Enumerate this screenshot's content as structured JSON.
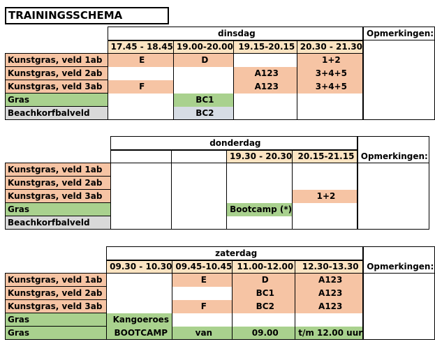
{
  "title": "TRAININGSSCHEMA",
  "sections": [
    {
      "day": "dinsdag",
      "times": [
        "17.45 - 18.45",
        "19.00-20.00",
        "19.15-20.15",
        "20.30 - 21.30"
      ],
      "remarks_header": "Opmerkingen:",
      "rows": [
        {
          "location": "Kunstgras, veld 1ab",
          "cells": [
            "E",
            "D",
            "",
            "1+2"
          ]
        },
        {
          "location": "Kunstgras, veld 2ab",
          "cells": [
            "",
            "",
            "A123",
            "3+4+5"
          ]
        },
        {
          "location": "Kunstgras, veld 3ab",
          "cells": [
            "F",
            "",
            "A123",
            "3+4+5"
          ]
        },
        {
          "location": "Gras",
          "cells": [
            "",
            "BC1",
            "",
            ""
          ]
        },
        {
          "location": "Beachkorfbalveld",
          "cells": [
            "",
            "BC2",
            "",
            ""
          ]
        }
      ]
    },
    {
      "day": "donderdag",
      "times": [
        "",
        "",
        "19.30 - 20.30",
        "20.15-21.15"
      ],
      "remarks_header": "Opmerkingen:",
      "rows": [
        {
          "location": "Kunstgras, veld 1ab",
          "cells": [
            "",
            "",
            "",
            ""
          ]
        },
        {
          "location": "Kunstgras, veld 2ab",
          "cells": [
            "",
            "",
            "",
            ""
          ]
        },
        {
          "location": "Kunstgras, veld 3ab",
          "cells": [
            "",
            "",
            "",
            "1+2"
          ]
        },
        {
          "location": "Gras",
          "cells": [
            "",
            "",
            "Bootcamp (*)",
            ""
          ]
        },
        {
          "location": "Beachkorfbalveld",
          "cells": [
            "",
            "",
            "",
            ""
          ]
        }
      ]
    },
    {
      "day": "zaterdag",
      "times": [
        "09.30 - 10.30",
        "09.45-10.45",
        "11.00-12.00",
        "12.30-13.30"
      ],
      "remarks_header": "Opmerkingen:",
      "rows": [
        {
          "location": "Kunstgras, veld 1ab",
          "cells": [
            "",
            "E",
            "D",
            "A123"
          ]
        },
        {
          "location": "Kunstgras, veld 2ab",
          "cells": [
            "",
            "",
            "BC1",
            "A123"
          ]
        },
        {
          "location": "Kunstgras, veld 3ab",
          "cells": [
            "",
            "F",
            "BC2",
            "A123"
          ]
        },
        {
          "location": "Gras",
          "cells": [
            "Kangoeroes",
            "",
            "",
            ""
          ]
        },
        {
          "location": "Gras",
          "cells": [
            "BOOTCAMP",
            "van",
            "09.00",
            "t/m 12.00 uur"
          ]
        }
      ]
    }
  ],
  "colors": {
    "salmon": "#f6c4a4",
    "green": "#a9d18e",
    "gray": "#d9d9d9",
    "light_blue_gray": "#d6dce4",
    "time_header": "#fce4c2"
  }
}
